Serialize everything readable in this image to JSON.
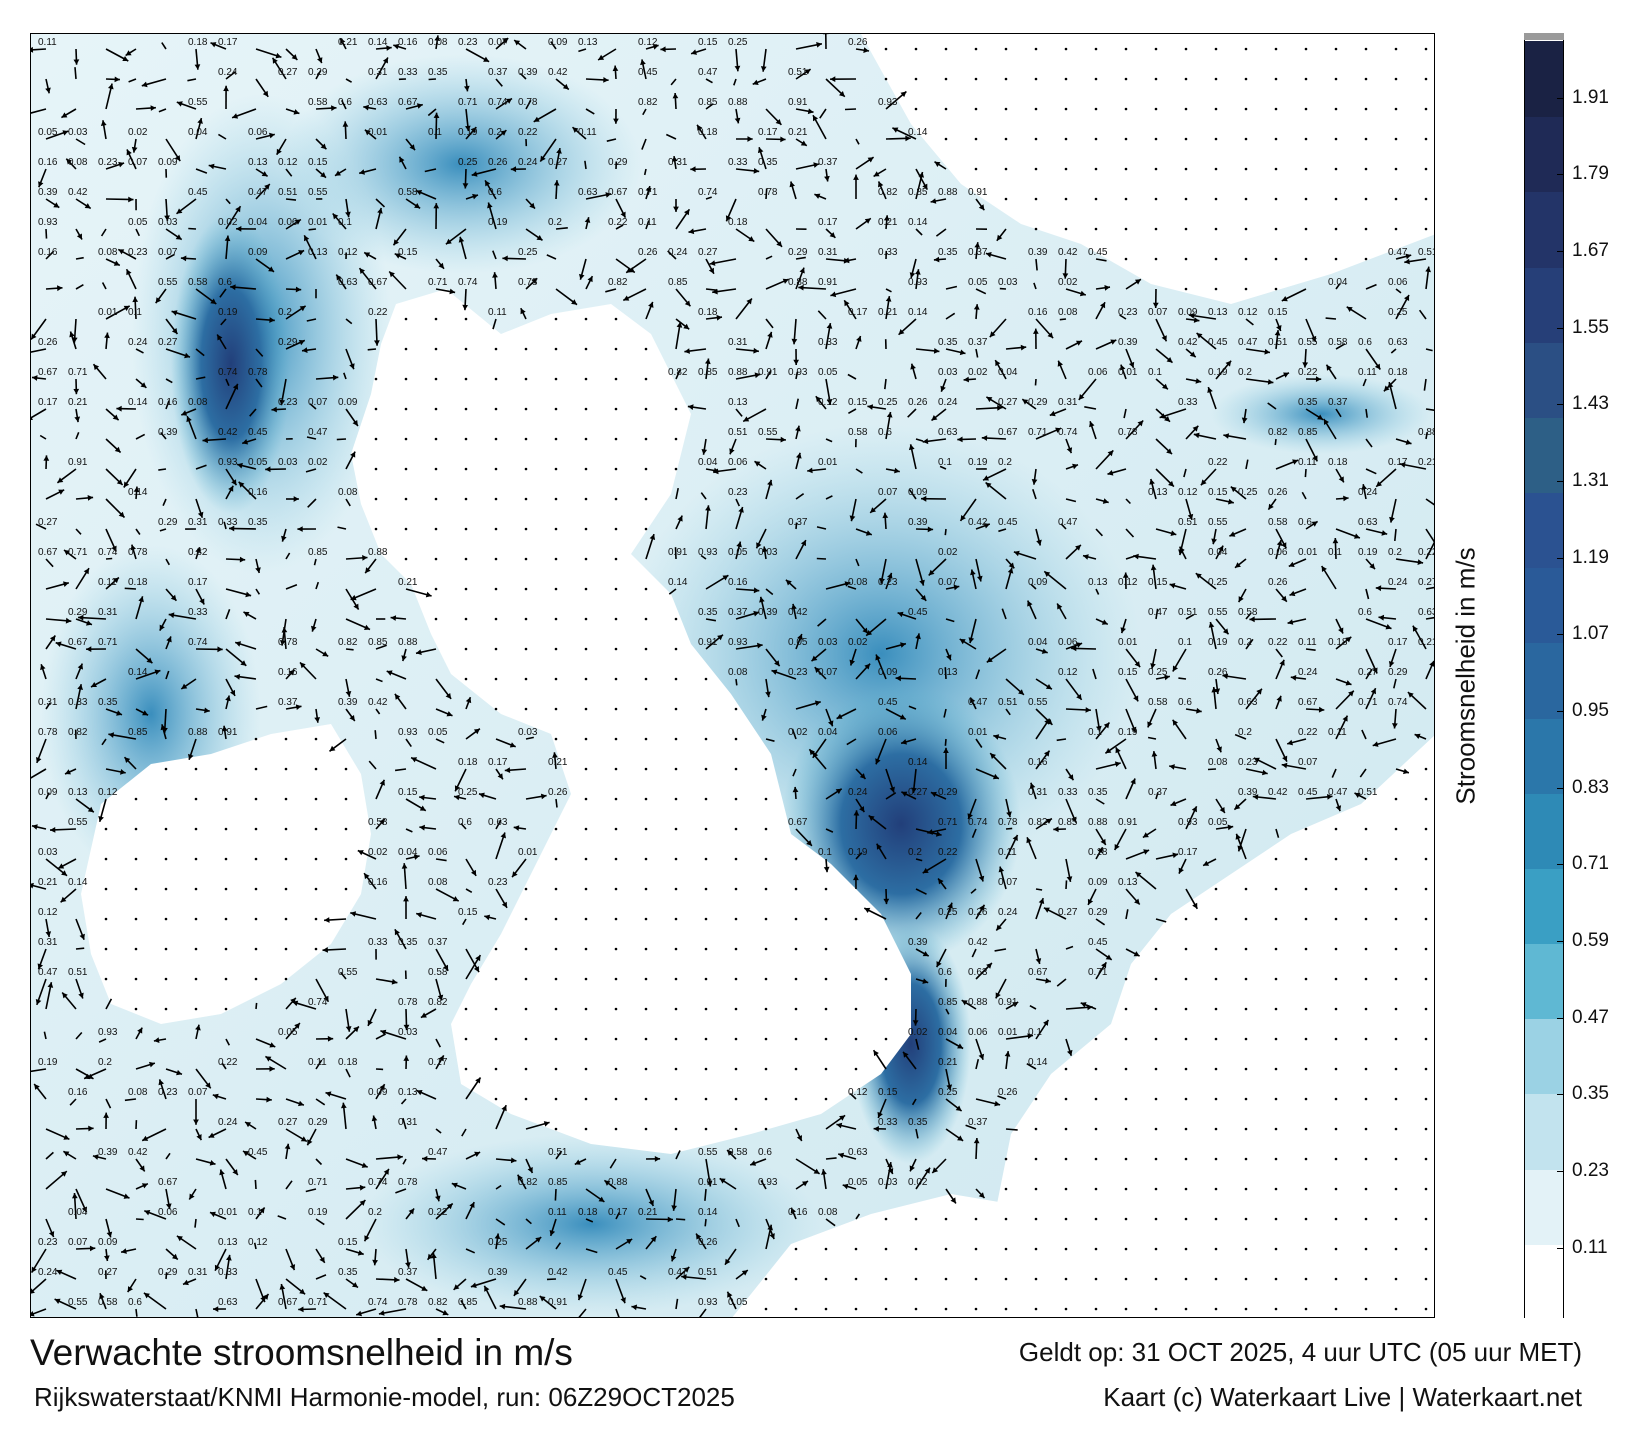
{
  "title": "Verwachte stroomsnelheid in m/s",
  "valid_time": "Geldt op: 31 OCT 2025, 4 uur UTC (05 uur MET)",
  "model_run": "Rijkswaterstaat/KNMI Harmonie-model, run: 06Z29OCT2025",
  "credit": "Kaart (c) Waterkaart Live | Waterkaart.net",
  "colorbar": {
    "label": "Stroomsnelheid in m/s",
    "ticks": [
      "1.91",
      "1.79",
      "1.67",
      "1.55",
      "1.43",
      "1.31",
      "1.19",
      "1.07",
      "0.95",
      "0.83",
      "0.71",
      "0.59",
      "0.47",
      "0.35",
      "0.23",
      "0.11"
    ],
    "tick_values": [
      1.91,
      1.79,
      1.67,
      1.55,
      1.43,
      1.31,
      1.19,
      1.07,
      0.95,
      0.83,
      0.71,
      0.59,
      0.47,
      0.35,
      0.23,
      0.11
    ],
    "range": [
      0,
      2.0
    ],
    "colors": [
      "#ffffff",
      "#e3f2f7",
      "#c2e3ee",
      "#9bd2e4",
      "#5fb8d3",
      "#3a9fc4",
      "#2e8ab6",
      "#2b77aa",
      "#2a679f",
      "#2a5a98",
      "#2b5291",
      "#2d5f86",
      "#2b4f84",
      "#263f78",
      "#233468",
      "#1f2a56",
      "#1a2244"
    ]
  },
  "colors": {
    "land": "#ffffff",
    "water_low": "#e8f5f9",
    "water_mid": "#4aa9cc",
    "water_high": "#24558f",
    "arrow": "#000000"
  },
  "speed_labels": [
    {
      "text": "0.11"
    },
    {
      "text": "0.18"
    },
    {
      "text": "0.17"
    },
    {
      "text": "0.21"
    },
    {
      "text": "0.14"
    },
    {
      "text": "0.16"
    },
    {
      "text": "0.08"
    },
    {
      "text": "0.23"
    },
    {
      "text": "0.07"
    },
    {
      "text": "0.09"
    },
    {
      "text": "0.13"
    },
    {
      "text": "0.12"
    },
    {
      "text": "0.15"
    },
    {
      "text": "0.25"
    },
    {
      "text": "0.26"
    },
    {
      "text": "0.24"
    },
    {
      "text": "0.27"
    },
    {
      "text": "0.29"
    },
    {
      "text": "0.31"
    },
    {
      "text": "0.33"
    },
    {
      "text": "0.35"
    },
    {
      "text": "0.37"
    },
    {
      "text": "0.39"
    },
    {
      "text": "0.42"
    },
    {
      "text": "0.45"
    },
    {
      "text": "0.47"
    },
    {
      "text": "0.51"
    },
    {
      "text": "0.55"
    },
    {
      "text": "0.58"
    },
    {
      "text": "0.6"
    },
    {
      "text": "0.63"
    },
    {
      "text": "0.67"
    },
    {
      "text": "0.71"
    },
    {
      "text": "0.74"
    },
    {
      "text": "0.78"
    },
    {
      "text": "0.82"
    },
    {
      "text": "0.85"
    },
    {
      "text": "0.88"
    },
    {
      "text": "0.91"
    },
    {
      "text": "0.93"
    },
    {
      "text": "0.05"
    },
    {
      "text": "0.03"
    },
    {
      "text": "0.02"
    },
    {
      "text": "0.04"
    },
    {
      "text": "0.06"
    },
    {
      "text": "0.01"
    },
    {
      "text": "0.1"
    },
    {
      "text": "0.19"
    },
    {
      "text": "0.2"
    },
    {
      "text": "0.22"
    }
  ]
}
